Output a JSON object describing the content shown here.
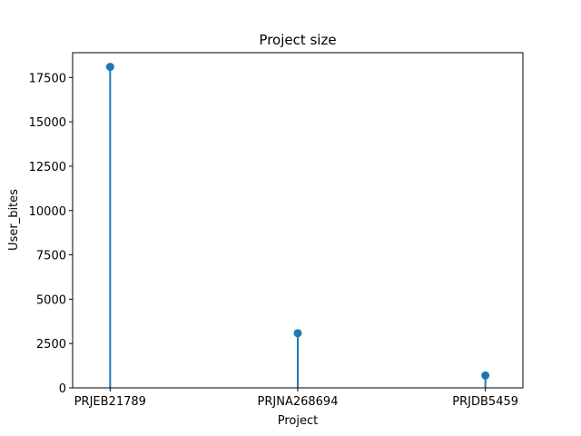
{
  "chart_data": {
    "type": "stem",
    "title": "Project size",
    "xlabel": "Project",
    "ylabel": "User_bites",
    "categories": [
      "PRJEB21789",
      "PRJNA268694",
      "PRJDB5459"
    ],
    "values": [
      18100,
      3080,
      700
    ],
    "ylim": [
      0,
      18900
    ],
    "yticks": [
      0,
      2500,
      5000,
      7500,
      10000,
      12500,
      15000,
      17500
    ],
    "grid": false,
    "color": "#1f77b4"
  }
}
